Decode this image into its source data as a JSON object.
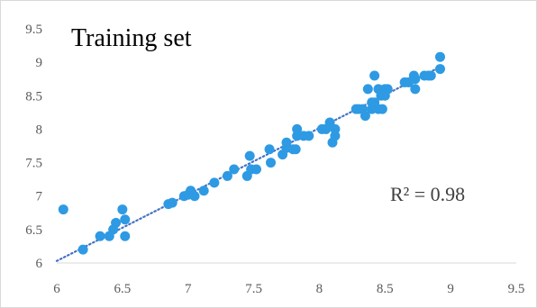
{
  "chart_data": {
    "type": "scatter",
    "title": "Training set",
    "annotation": "R² = 0.98",
    "xlabel": "",
    "ylabel": "",
    "xlim": [
      6,
      9.5
    ],
    "ylim": [
      6,
      9.5
    ],
    "x_ticks": [
      "6",
      "6.5",
      "7",
      "7.5",
      "8",
      "8.5",
      "9",
      "9.5"
    ],
    "y_ticks": [
      "6",
      "6.5",
      "7",
      "7.5",
      "8",
      "8.5",
      "9",
      "9.5"
    ],
    "grid": false,
    "legend": "none",
    "marker_color": "#2e9ae3",
    "trendline_color": "#4472c4",
    "trendline": {
      "style": "dotted",
      "x": [
        6,
        8.92
      ],
      "y": [
        6.03,
        8.93
      ]
    },
    "series": [
      {
        "x": [
          6.05,
          6.2,
          6.33,
          6.4,
          6.43,
          6.45,
          6.5,
          6.52,
          6.52,
          6.85,
          6.88,
          6.97,
          7.0,
          7.02,
          7.05,
          7.12,
          7.2,
          7.3,
          7.35,
          7.45,
          7.47,
          7.48,
          7.52,
          7.62,
          7.63,
          7.72,
          7.75,
          7.75,
          7.8,
          7.82,
          7.83,
          7.83,
          7.88,
          7.92,
          8.02,
          8.05,
          8.08,
          8.1,
          8.12,
          8.12,
          8.28,
          8.3,
          8.33,
          8.35,
          8.37,
          8.4,
          8.4,
          8.42,
          8.42,
          8.45,
          8.45,
          8.47,
          8.48,
          8.5,
          8.5,
          8.52,
          8.65,
          8.68,
          8.72,
          8.73,
          8.73,
          8.8,
          8.83,
          8.85,
          8.92,
          8.92
        ],
        "y": [
          6.8,
          6.2,
          6.4,
          6.4,
          6.5,
          6.6,
          6.8,
          6.4,
          6.65,
          6.88,
          6.9,
          7.0,
          7.02,
          7.08,
          7.0,
          7.08,
          7.2,
          7.3,
          7.4,
          7.3,
          7.6,
          7.4,
          7.4,
          7.7,
          7.5,
          7.62,
          7.8,
          7.72,
          7.7,
          7.7,
          7.9,
          8.0,
          7.9,
          7.9,
          8.0,
          8.0,
          8.1,
          7.8,
          7.9,
          8.0,
          8.3,
          8.3,
          8.3,
          8.2,
          8.6,
          8.4,
          8.3,
          8.8,
          8.4,
          8.3,
          8.6,
          8.5,
          8.3,
          8.5,
          8.6,
          8.6,
          8.7,
          8.7,
          8.8,
          8.6,
          8.75,
          8.8,
          8.8,
          8.8,
          9.08,
          8.9
        ]
      }
    ]
  }
}
